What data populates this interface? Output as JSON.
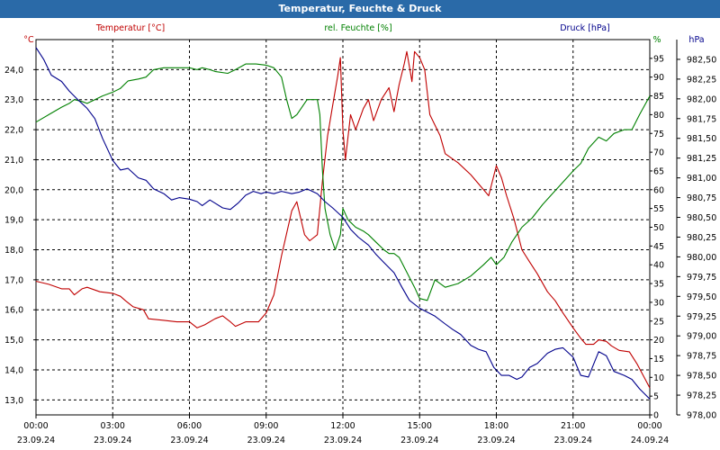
{
  "window": {
    "title": "Temperatur, Feuchte & Druck"
  },
  "chart_data": {
    "type": "line",
    "title": "Temperatur, Feuchte & Druck",
    "x_ticks": [
      {
        "time": "00:00",
        "date": "23.09.24"
      },
      {
        "time": "03:00",
        "date": "23.09.24"
      },
      {
        "time": "06:00",
        "date": "23.09.24"
      },
      {
        "time": "09:00",
        "date": "23.09.24"
      },
      {
        "time": "12:00",
        "date": "23.09.24"
      },
      {
        "time": "15:00",
        "date": "23.09.24"
      },
      {
        "time": "18:00",
        "date": "23.09.24"
      },
      {
        "time": "21:00",
        "date": "23.09.24"
      },
      {
        "time": "00:00",
        "date": "24.09.24"
      }
    ],
    "xlim_hours": [
      0,
      24
    ],
    "grid": true,
    "axes": {
      "temperature": {
        "label": "Temperatur [°C]",
        "unit": "°C",
        "side": "left",
        "color": "#c00000",
        "ylim": [
          12.5,
          25.0
        ],
        "ticks": [
          "13,0",
          "14,0",
          "15,0",
          "16,0",
          "17,0",
          "18,0",
          "19,0",
          "20,0",
          "21,0",
          "22,0",
          "23,0",
          "24,0"
        ]
      },
      "humidity": {
        "label": "rel. Feuchte [%]",
        "unit": "%",
        "side": "right",
        "color": "#008000",
        "ylim": [
          0,
          100
        ],
        "ticks": [
          "0",
          "5",
          "10",
          "15",
          "20",
          "25",
          "30",
          "35",
          "40",
          "45",
          "50",
          "55",
          "60",
          "65",
          "70",
          "75",
          "80",
          "85",
          "90",
          "95"
        ]
      },
      "pressure": {
        "label": "Druck [hPa]",
        "unit": "hPa",
        "side": "right",
        "color": "#00008b",
        "ylim": [
          978.0,
          982.75
        ],
        "ticks": [
          "978,00",
          "978,25",
          "978,50",
          "978,75",
          "979,00",
          "979,25",
          "979,50",
          "979,75",
          "980,00",
          "980,25",
          "980,50",
          "980,75",
          "981,00",
          "981,25",
          "981,50",
          "981,75",
          "982,00",
          "982,25",
          "982,50"
        ]
      }
    },
    "series": [
      {
        "name": "Temperatur [°C]",
        "axis": "temperature",
        "color": "#c00000",
        "points": [
          [
            0,
            16.95
          ],
          [
            0.5,
            16.85
          ],
          [
            1,
            16.7
          ],
          [
            1.3,
            16.7
          ],
          [
            1.5,
            16.5
          ],
          [
            1.8,
            16.7
          ],
          [
            2,
            16.75
          ],
          [
            2.5,
            16.6
          ],
          [
            3,
            16.55
          ],
          [
            3.3,
            16.45
          ],
          [
            3.5,
            16.3
          ],
          [
            3.8,
            16.1
          ],
          [
            4.2,
            16.0
          ],
          [
            4.4,
            15.7
          ],
          [
            5,
            15.65
          ],
          [
            5.5,
            15.6
          ],
          [
            6,
            15.6
          ],
          [
            6.3,
            15.4
          ],
          [
            6.6,
            15.5
          ],
          [
            7,
            15.7
          ],
          [
            7.3,
            15.8
          ],
          [
            7.6,
            15.6
          ],
          [
            7.8,
            15.45
          ],
          [
            8.2,
            15.6
          ],
          [
            8.7,
            15.6
          ],
          [
            9,
            15.9
          ],
          [
            9.3,
            16.5
          ],
          [
            9.6,
            17.8
          ],
          [
            10,
            19.3
          ],
          [
            10.2,
            19.6
          ],
          [
            10.5,
            18.5
          ],
          [
            10.7,
            18.3
          ],
          [
            11,
            18.5
          ],
          [
            11.2,
            20.3
          ],
          [
            11.4,
            21.8
          ],
          [
            11.6,
            22.8
          ],
          [
            11.8,
            23.8
          ],
          [
            11.9,
            24.4
          ],
          [
            12,
            22.0
          ],
          [
            12.1,
            21.0
          ],
          [
            12.3,
            22.5
          ],
          [
            12.5,
            22.0
          ],
          [
            12.8,
            22.7
          ],
          [
            13,
            23.0
          ],
          [
            13.2,
            22.3
          ],
          [
            13.5,
            23.0
          ],
          [
            13.8,
            23.4
          ],
          [
            14,
            22.6
          ],
          [
            14.2,
            23.5
          ],
          [
            14.4,
            24.2
          ],
          [
            14.5,
            24.6
          ],
          [
            14.6,
            24.1
          ],
          [
            14.7,
            23.6
          ],
          [
            14.8,
            24.6
          ],
          [
            15,
            24.4
          ],
          [
            15.2,
            24.0
          ],
          [
            15.4,
            22.5
          ],
          [
            15.8,
            21.8
          ],
          [
            16,
            21.2
          ],
          [
            16.5,
            20.9
          ],
          [
            17,
            20.5
          ],
          [
            17.4,
            20.1
          ],
          [
            17.7,
            19.8
          ],
          [
            18,
            20.8
          ],
          [
            18.2,
            20.4
          ],
          [
            18.4,
            19.8
          ],
          [
            18.7,
            19.0
          ],
          [
            19,
            18.0
          ],
          [
            19.3,
            17.6
          ],
          [
            19.6,
            17.2
          ],
          [
            20,
            16.6
          ],
          [
            20.3,
            16.3
          ],
          [
            20.6,
            15.9
          ],
          [
            21,
            15.4
          ],
          [
            21.3,
            15.05
          ],
          [
            21.5,
            14.85
          ],
          [
            21.8,
            14.85
          ],
          [
            22,
            15.0
          ],
          [
            22.3,
            14.95
          ],
          [
            22.5,
            14.8
          ],
          [
            22.8,
            14.65
          ],
          [
            23.2,
            14.6
          ],
          [
            23.5,
            14.2
          ],
          [
            24,
            13.4
          ]
        ]
      },
      {
        "name": "rel. Feuchte [%]",
        "axis": "humidity",
        "color": "#008000",
        "points": [
          [
            0,
            78
          ],
          [
            0.5,
            80
          ],
          [
            1,
            82
          ],
          [
            1.3,
            83
          ],
          [
            1.5,
            84
          ],
          [
            1.8,
            83.5
          ],
          [
            2,
            83
          ],
          [
            2.3,
            84
          ],
          [
            2.6,
            85
          ],
          [
            3,
            86
          ],
          [
            3.3,
            87
          ],
          [
            3.6,
            89
          ],
          [
            4,
            89.5
          ],
          [
            4.3,
            90
          ],
          [
            4.6,
            92
          ],
          [
            5,
            92.5
          ],
          [
            5.5,
            92.5
          ],
          [
            6,
            92.5
          ],
          [
            6.3,
            92
          ],
          [
            6.5,
            92.5
          ],
          [
            6.8,
            92
          ],
          [
            7,
            91.5
          ],
          [
            7.5,
            91
          ],
          [
            7.8,
            92
          ],
          [
            8.2,
            93.5
          ],
          [
            8.6,
            93.5
          ],
          [
            9,
            93.2
          ],
          [
            9.3,
            92.5
          ],
          [
            9.6,
            90
          ],
          [
            9.8,
            84
          ],
          [
            10,
            79
          ],
          [
            10.2,
            80
          ],
          [
            10.4,
            82
          ],
          [
            10.6,
            84
          ],
          [
            11,
            84
          ],
          [
            11.1,
            80
          ],
          [
            11.2,
            65
          ],
          [
            11.3,
            55
          ],
          [
            11.5,
            48
          ],
          [
            11.7,
            44
          ],
          [
            11.9,
            48
          ],
          [
            12,
            55
          ],
          [
            12.2,
            52
          ],
          [
            12.5,
            50
          ],
          [
            12.8,
            49
          ],
          [
            13,
            48
          ],
          [
            13.3,
            46
          ],
          [
            13.6,
            44
          ],
          [
            13.8,
            43
          ],
          [
            14,
            43
          ],
          [
            14.2,
            42
          ],
          [
            14.5,
            38
          ],
          [
            14.8,
            34
          ],
          [
            15,
            31
          ],
          [
            15.3,
            30.5
          ],
          [
            15.6,
            36
          ],
          [
            16,
            34
          ],
          [
            16.5,
            35
          ],
          [
            17,
            37
          ],
          [
            17.5,
            40
          ],
          [
            17.8,
            42
          ],
          [
            18,
            40
          ],
          [
            18.3,
            42
          ],
          [
            18.6,
            46
          ],
          [
            19,
            50
          ],
          [
            19.4,
            52.5
          ],
          [
            19.8,
            56
          ],
          [
            20.2,
            59
          ],
          [
            20.6,
            62
          ],
          [
            21,
            65
          ],
          [
            21.3,
            67
          ],
          [
            21.6,
            71
          ],
          [
            22,
            74
          ],
          [
            22.3,
            73
          ],
          [
            22.6,
            75
          ],
          [
            23,
            76
          ],
          [
            23.3,
            76
          ],
          [
            23.6,
            80
          ],
          [
            24,
            85
          ]
        ]
      },
      {
        "name": "Druck [hPa]",
        "axis": "pressure",
        "color": "#00008b",
        "points": [
          [
            0,
            982.65
          ],
          [
            0.3,
            982.5
          ],
          [
            0.6,
            982.3
          ],
          [
            1,
            982.22
          ],
          [
            1.3,
            982.1
          ],
          [
            1.6,
            982.0
          ],
          [
            2,
            981.88
          ],
          [
            2.3,
            981.75
          ],
          [
            2.6,
            981.5
          ],
          [
            3,
            981.22
          ],
          [
            3.3,
            981.1
          ],
          [
            3.6,
            981.12
          ],
          [
            4,
            981.0
          ],
          [
            4.3,
            980.97
          ],
          [
            4.6,
            980.86
          ],
          [
            5,
            980.8
          ],
          [
            5.3,
            980.72
          ],
          [
            5.6,
            980.75
          ],
          [
            6,
            980.73
          ],
          [
            6.3,
            980.7
          ],
          [
            6.5,
            980.65
          ],
          [
            6.8,
            980.72
          ],
          [
            7,
            980.68
          ],
          [
            7.3,
            980.62
          ],
          [
            7.6,
            980.6
          ],
          [
            7.9,
            980.68
          ],
          [
            8.2,
            980.78
          ],
          [
            8.5,
            980.83
          ],
          [
            8.8,
            980.8
          ],
          [
            9,
            980.82
          ],
          [
            9.3,
            980.8
          ],
          [
            9.6,
            980.83
          ],
          [
            10,
            980.8
          ],
          [
            10.3,
            980.82
          ],
          [
            10.6,
            980.86
          ],
          [
            11,
            980.8
          ],
          [
            11.3,
            980.7
          ],
          [
            11.6,
            980.62
          ],
          [
            12,
            980.5
          ],
          [
            12.3,
            980.35
          ],
          [
            12.6,
            980.25
          ],
          [
            13,
            980.15
          ],
          [
            13.3,
            980.03
          ],
          [
            13.6,
            979.93
          ],
          [
            14,
            979.8
          ],
          [
            14.3,
            979.62
          ],
          [
            14.6,
            979.45
          ],
          [
            15,
            979.35
          ],
          [
            15.3,
            979.3
          ],
          [
            15.6,
            979.25
          ],
          [
            16,
            979.15
          ],
          [
            16.3,
            979.08
          ],
          [
            16.6,
            979.02
          ],
          [
            17,
            978.88
          ],
          [
            17.3,
            978.83
          ],
          [
            17.6,
            978.8
          ],
          [
            17.9,
            978.6
          ],
          [
            18.2,
            978.5
          ],
          [
            18.5,
            978.5
          ],
          [
            18.8,
            978.45
          ],
          [
            19,
            978.48
          ],
          [
            19.3,
            978.6
          ],
          [
            19.6,
            978.65
          ],
          [
            20,
            978.78
          ],
          [
            20.3,
            978.83
          ],
          [
            20.6,
            978.85
          ],
          [
            21,
            978.73
          ],
          [
            21.3,
            978.5
          ],
          [
            21.6,
            978.48
          ],
          [
            22,
            978.8
          ],
          [
            22.3,
            978.75
          ],
          [
            22.6,
            978.55
          ],
          [
            23,
            978.5
          ],
          [
            23.3,
            978.45
          ],
          [
            23.6,
            978.33
          ],
          [
            24,
            978.2
          ]
        ]
      }
    ]
  }
}
